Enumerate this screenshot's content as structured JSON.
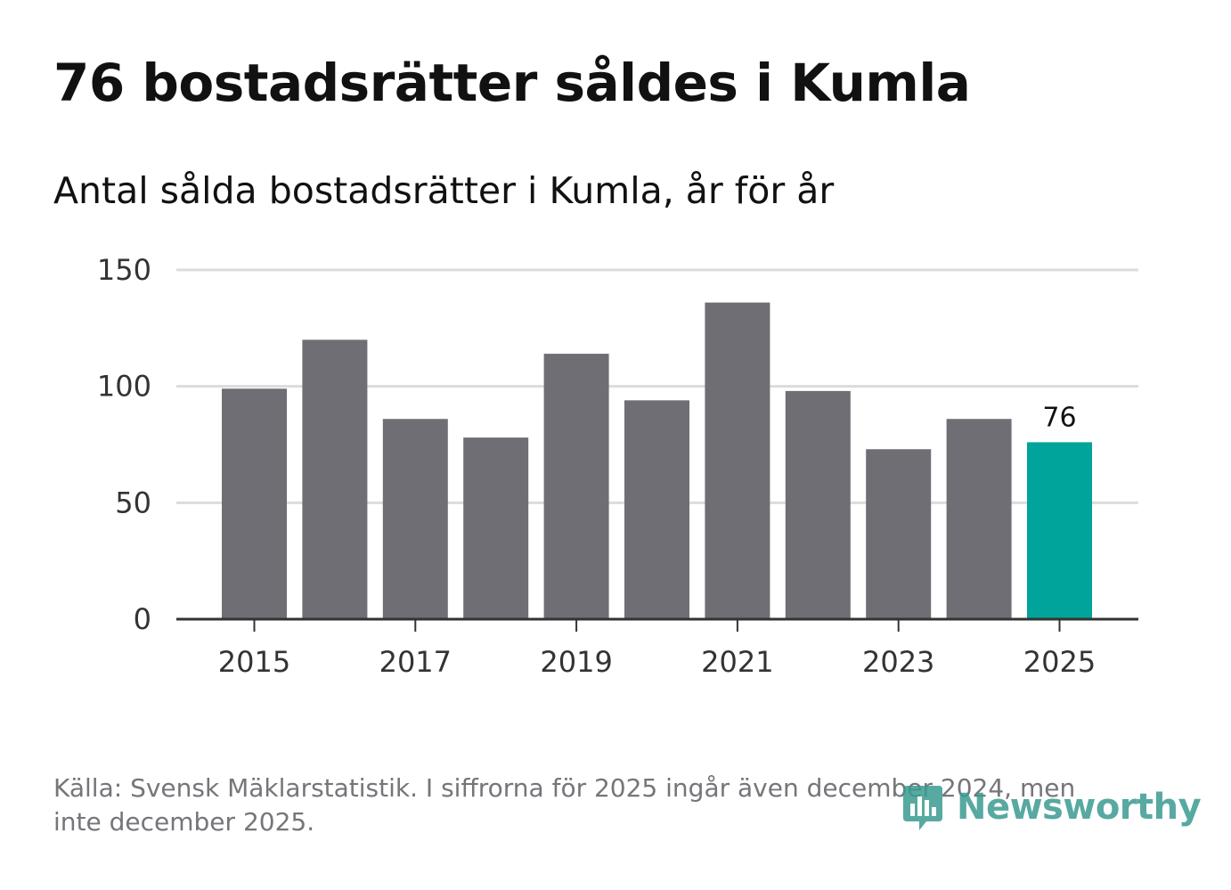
{
  "title": "76 bostadsrätter såldes i Kumla",
  "subtitle": "Antal sålda bostadsrätter i Kumla, år för år",
  "footer": {
    "source": "Källa: Svensk Mäklarstatistik. I siffrorna för 2025 ingår även december 2024, men inte december 2025.",
    "logo_text": "Newsworthy"
  },
  "colors": {
    "bar": "#6f6e74",
    "highlight": "#00a49a",
    "grid": "#dcdcdc",
    "axis": "#333333",
    "tick_text": "#333333"
  },
  "chart_data": {
    "type": "bar",
    "title": "Antal sålda bostadsrätter i Kumla, år för år",
    "xlabel": "",
    "ylabel": "",
    "x": [
      2015,
      2016,
      2017,
      2018,
      2019,
      2020,
      2021,
      2022,
      2023,
      2024,
      2025
    ],
    "values": [
      99,
      120,
      86,
      78,
      114,
      94,
      136,
      98,
      73,
      86,
      76
    ],
    "highlight_index": 10,
    "highlight_label": "76",
    "ylim": [
      0,
      150
    ],
    "yticks": [
      0,
      50,
      100,
      150
    ],
    "xticks": [
      2015,
      2017,
      2019,
      2021,
      2023,
      2025
    ],
    "grid": true
  }
}
